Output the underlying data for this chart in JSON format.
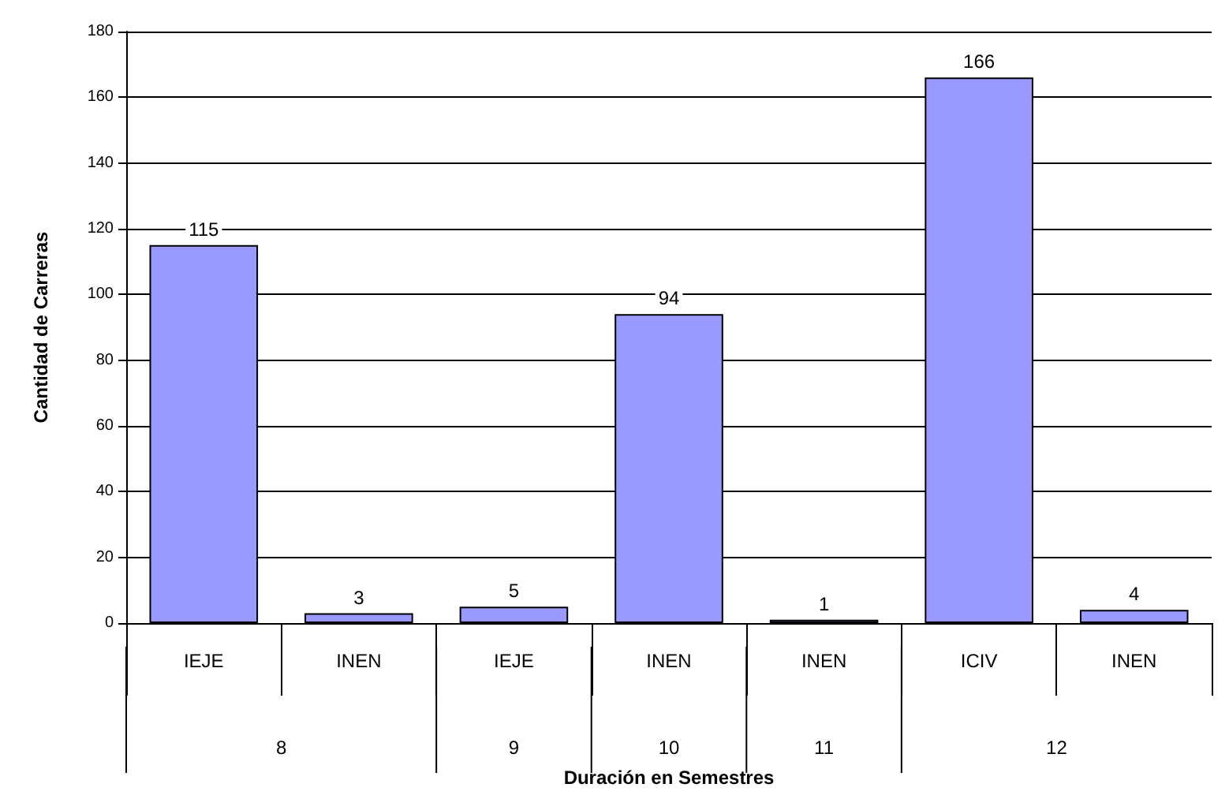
{
  "chart_data": {
    "type": "bar",
    "xlabel": "Duración en Semestres",
    "ylabel": "Cantidad de Carreras",
    "categories": [
      "IEJE",
      "INEN",
      "IEJE",
      "INEN",
      "INEN",
      "ICIV",
      "INEN"
    ],
    "values": [
      115,
      3,
      5,
      94,
      1,
      166,
      4
    ],
    "color": "#9999ff",
    "ylim": [
      0,
      180
    ],
    "yticks": [
      0,
      20,
      40,
      60,
      80,
      100,
      120,
      140,
      160,
      180
    ],
    "grid": "y",
    "data_labels": true,
    "annotations": [
      "8",
      "9",
      "10",
      "11",
      "12"
    ]
  }
}
